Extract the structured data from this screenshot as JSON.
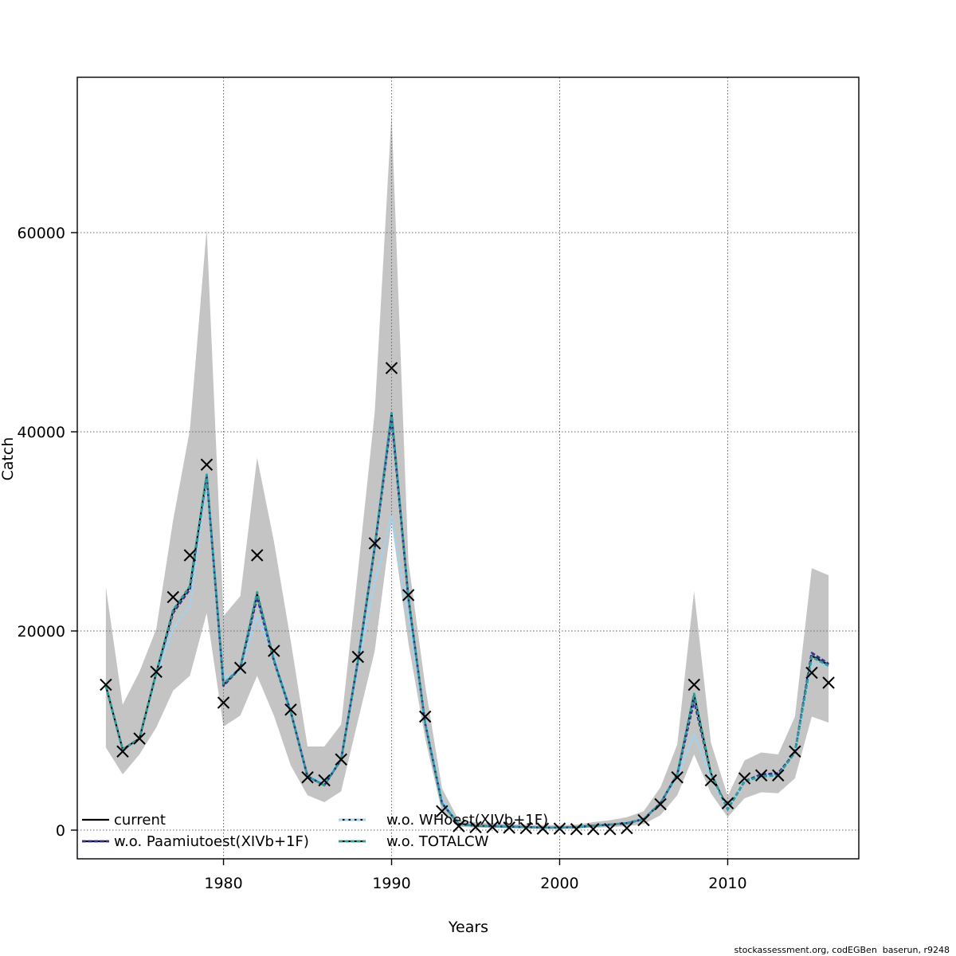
{
  "chart_data": {
    "type": "line",
    "title": "",
    "xlabel": "Years",
    "ylabel": "Catch",
    "attribution": "stockassessment.org, codEGBen  baserun, r9248",
    "grid": "dotted",
    "legend_position": "bottom-left-two-columns",
    "marker": "x",
    "xlim": [
      1971.3,
      2017.8
    ],
    "ylim": [
      -2880,
      75600
    ],
    "x_ticks": [
      1980,
      1990,
      2000,
      2010
    ],
    "x_tick_labels": [
      "1980",
      "1990",
      "2000",
      "2010"
    ],
    "y_ticks": [
      0,
      20000,
      40000,
      60000
    ],
    "y_tick_labels": [
      "0",
      "20000",
      "40000",
      "60000"
    ],
    "years": [
      1973,
      1974,
      1975,
      1976,
      1977,
      1978,
      1979,
      1980,
      1981,
      1982,
      1983,
      1984,
      1985,
      1986,
      1987,
      1988,
      1989,
      1990,
      1991,
      1992,
      1993,
      1994,
      1995,
      1996,
      1997,
      1998,
      1999,
      2000,
      2001,
      2002,
      2003,
      2004,
      2005,
      2006,
      2007,
      2008,
      2009,
      2010,
      2011,
      2012,
      2013,
      2014,
      2015,
      2016
    ],
    "observed_catch": [
      14600,
      7900,
      9200,
      15900,
      23400,
      27600,
      36700,
      12800,
      16300,
      27600,
      18000,
      12100,
      5300,
      5000,
      7100,
      17400,
      28800,
      46400,
      23600,
      11400,
      1900,
      400,
      300,
      300,
      250,
      200,
      150,
      150,
      100,
      100,
      100,
      200,
      1000,
      2600,
      5300,
      14600,
      5000,
      2700,
      5200,
      5500,
      5500,
      7900,
      15800,
      14800
    ],
    "confidence_band": {
      "color": "#c4c4c4",
      "upper": [
        24400,
        12600,
        15900,
        20200,
        31100,
        40200,
        60400,
        21500,
        23500,
        37400,
        29000,
        19000,
        8400,
        8400,
        10600,
        26000,
        42000,
        71900,
        27000,
        14500,
        4200,
        1000,
        800,
        700,
        600,
        550,
        500,
        500,
        550,
        800,
        1000,
        1300,
        1900,
        4300,
        8600,
        24000,
        8800,
        3400,
        7000,
        7800,
        7600,
        11400,
        26300,
        25600
      ],
      "lower": [
        8300,
        5600,
        7600,
        10300,
        14000,
        15500,
        21800,
        10400,
        11500,
        15500,
        11500,
        6500,
        3500,
        2800,
        3900,
        11000,
        18000,
        31000,
        18800,
        9200,
        1800,
        350,
        250,
        220,
        200,
        170,
        150,
        150,
        170,
        250,
        300,
        400,
        600,
        1500,
        3500,
        7600,
        3700,
        1300,
        3200,
        3800,
        3700,
        5200,
        11400,
        10800
      ]
    },
    "series": [
      {
        "name": "current",
        "color": "#000000",
        "style": "solid",
        "values": [
          14500,
          8100,
          9200,
          15800,
          22000,
          24400,
          35600,
          14600,
          16300,
          23700,
          17100,
          11900,
          5400,
          4500,
          7100,
          17000,
          28400,
          41800,
          23400,
          10700,
          2700,
          600,
          450,
          400,
          350,
          300,
          250,
          250,
          300,
          450,
          550,
          700,
          1100,
          2700,
          5600,
          13600,
          5700,
          2100,
          4900,
          5400,
          5500,
          7800,
          17500,
          16600
        ]
      },
      {
        "name": "w.o. Paamiutoest(XIVb+1F)",
        "color": "#32328e",
        "style": "dashed",
        "values": [
          14500,
          8100,
          9200,
          15800,
          21800,
          24200,
          35600,
          14500,
          16300,
          23400,
          17000,
          11900,
          5400,
          4500,
          7100,
          17000,
          28400,
          41500,
          23300,
          10700,
          2700,
          600,
          450,
          400,
          350,
          300,
          250,
          250,
          300,
          450,
          550,
          700,
          1100,
          2700,
          5600,
          13000,
          5700,
          2100,
          4900,
          5600,
          5700,
          7800,
          17800,
          16700
        ]
      },
      {
        "name": "w.o. WHoest(XIVb+1F)",
        "color": "#9ed4f2",
        "style": "dashed",
        "values": [
          14500,
          8100,
          9200,
          15500,
          20200,
          22500,
          34800,
          15300,
          16000,
          21400,
          17500,
          12100,
          5400,
          4900,
          7100,
          16700,
          24700,
          31500,
          21400,
          11000,
          3200,
          600,
          450,
          400,
          350,
          300,
          250,
          250,
          300,
          450,
          550,
          700,
          1100,
          2700,
          5300,
          9600,
          5200,
          2100,
          4900,
          5400,
          5500,
          7800,
          16800,
          16400
        ]
      },
      {
        "name": "w.o. TOTALCW",
        "color": "#2e9e96",
        "style": "dashed",
        "values": [
          14500,
          8100,
          9200,
          15800,
          22100,
          24500,
          35700,
          14700,
          16300,
          23900,
          17100,
          11900,
          5400,
          4500,
          7100,
          17000,
          28500,
          41900,
          23400,
          10700,
          2700,
          600,
          450,
          400,
          350,
          300,
          250,
          250,
          300,
          450,
          550,
          700,
          1100,
          2700,
          5600,
          13700,
          5700,
          2100,
          4900,
          5400,
          5500,
          7800,
          17400,
          16500
        ]
      }
    ]
  }
}
